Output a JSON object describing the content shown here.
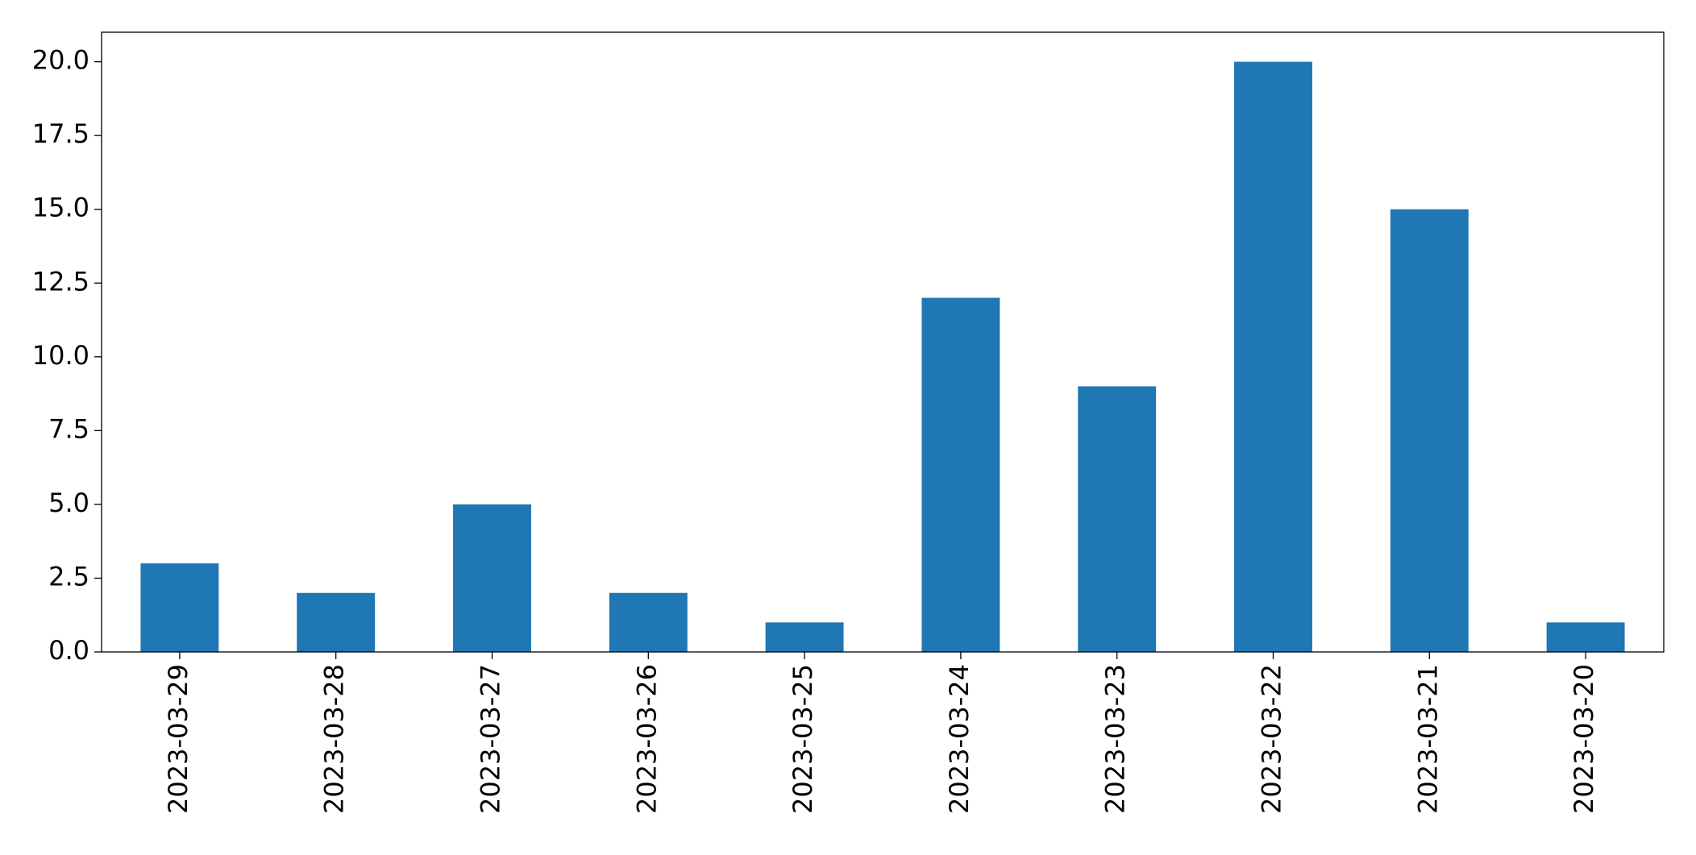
{
  "chart_data": {
    "type": "bar",
    "categories": [
      "2023-03-29",
      "2023-03-28",
      "2023-03-27",
      "2023-03-26",
      "2023-03-25",
      "2023-03-24",
      "2023-03-23",
      "2023-03-22",
      "2023-03-21",
      "2023-03-20"
    ],
    "values": [
      3,
      2,
      5,
      2,
      1,
      12,
      9,
      20,
      15,
      1
    ],
    "color": "#1f77b4",
    "ylim": [
      0,
      21
    ],
    "yticks": [
      {
        "value": 0,
        "label": "0.0"
      },
      2.5,
      {
        "value": 5,
        "label": "5.0"
      },
      7.5,
      {
        "value": 10,
        "label": "10.0"
      },
      12.5,
      {
        "value": 15,
        "label": "15.0"
      },
      17.5,
      {
        "value": 20,
        "label": "20.0"
      }
    ],
    "grid": false
  }
}
